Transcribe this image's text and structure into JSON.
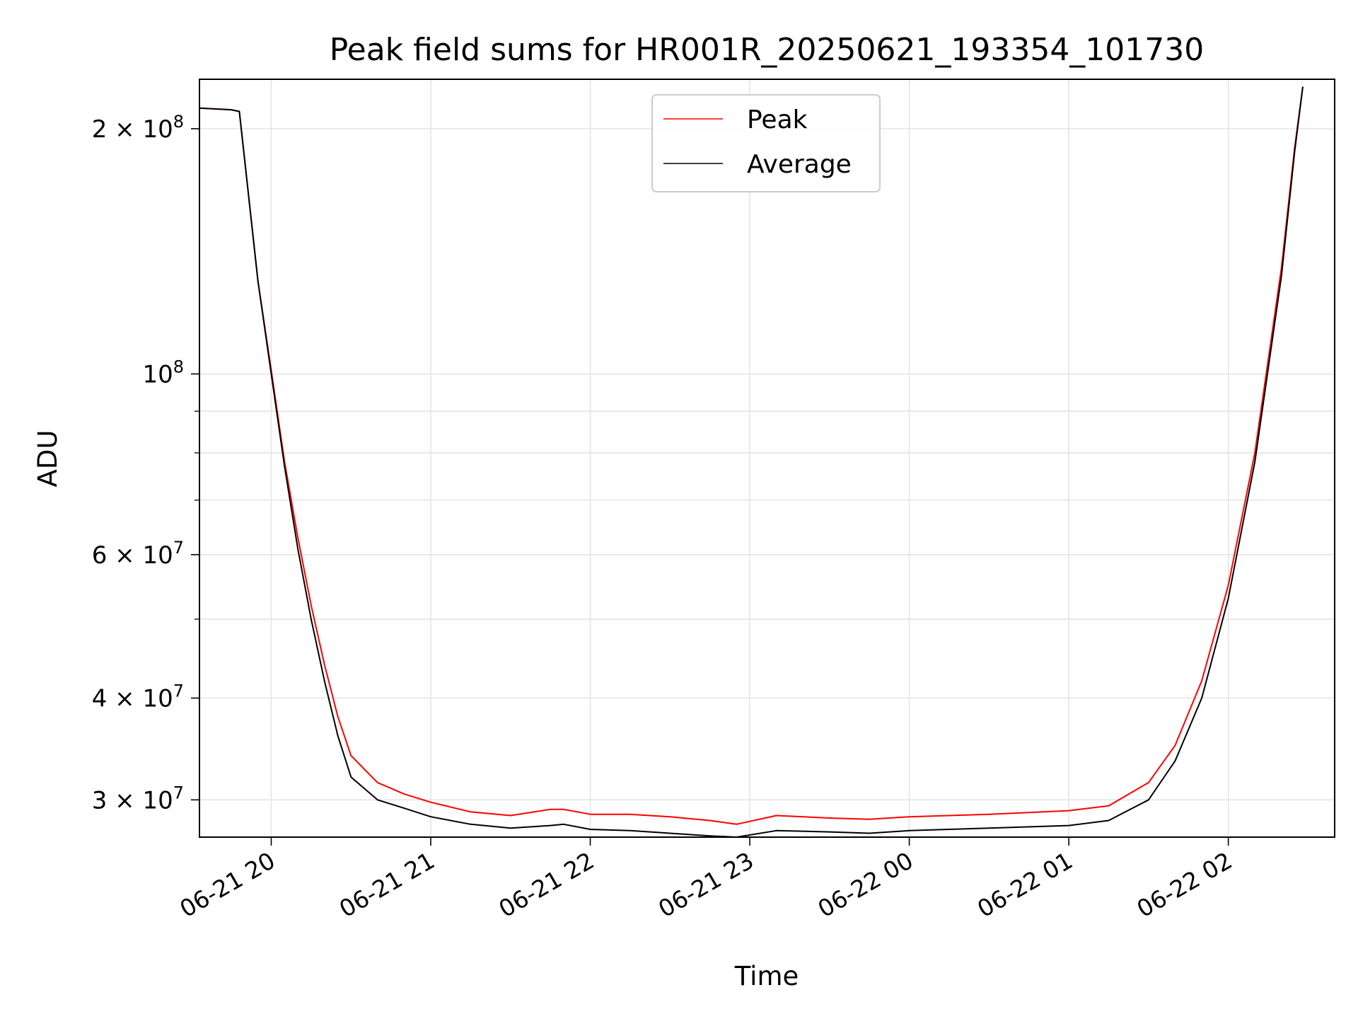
{
  "chart_data": {
    "type": "line",
    "title": "Peak field sums for HR001R_20250621_193354_101730",
    "xlabel": "Time",
    "ylabel": "ADU",
    "yscale": "log",
    "grid": true,
    "legend_position": "upper center",
    "xlim": [
      "2025-06-21 19:33",
      "2025-06-22 02:40"
    ],
    "ylim": [
      27000000,
      230000000
    ],
    "x_ticks": [
      {
        "value": "2025-06-21 20:00",
        "label": "06-21 20"
      },
      {
        "value": "2025-06-21 21:00",
        "label": "06-21 21"
      },
      {
        "value": "2025-06-21 22:00",
        "label": "06-21 22"
      },
      {
        "value": "2025-06-21 23:00",
        "label": "06-21 23"
      },
      {
        "value": "2025-06-22 00:00",
        "label": "06-22 00"
      },
      {
        "value": "2025-06-22 01:00",
        "label": "06-22 01"
      },
      {
        "value": "2025-06-22 02:00",
        "label": "06-22 02"
      }
    ],
    "y_ticks": [
      {
        "value": 200000000,
        "mantissa": "2",
        "exponent": "8"
      },
      {
        "value": 100000000,
        "mantissa": "",
        "exponent": "8"
      },
      {
        "value": 60000000,
        "mantissa": "6",
        "exponent": "7"
      },
      {
        "value": 40000000,
        "mantissa": "4",
        "exponent": "7"
      },
      {
        "value": 30000000,
        "mantissa": "3",
        "exponent": "7"
      }
    ],
    "y_minor_ticks": [
      50000000,
      70000000,
      80000000,
      90000000
    ],
    "series": [
      {
        "name": "Peak",
        "color": "#ff0000",
        "x": [
          "2025-06-21 19:33",
          "2025-06-21 19:45",
          "2025-06-21 19:48",
          "2025-06-21 19:55",
          "2025-06-21 20:00",
          "2025-06-21 20:05",
          "2025-06-21 20:10",
          "2025-06-21 20:15",
          "2025-06-21 20:20",
          "2025-06-21 20:25",
          "2025-06-21 20:30",
          "2025-06-21 20:40",
          "2025-06-21 20:50",
          "2025-06-21 21:00",
          "2025-06-21 21:15",
          "2025-06-21 21:30",
          "2025-06-21 21:45",
          "2025-06-21 21:50",
          "2025-06-21 22:00",
          "2025-06-21 22:15",
          "2025-06-21 22:30",
          "2025-06-21 22:45",
          "2025-06-21 22:55",
          "2025-06-21 23:10",
          "2025-06-21 23:30",
          "2025-06-21 23:45",
          "2025-06-22 00:00",
          "2025-06-22 00:30",
          "2025-06-22 01:00",
          "2025-06-22 01:15",
          "2025-06-22 01:30",
          "2025-06-22 01:40",
          "2025-06-22 01:50",
          "2025-06-22 02:00",
          "2025-06-22 02:10",
          "2025-06-22 02:20",
          "2025-06-22 02:25",
          "2025-06-22 02:28"
        ],
        "y": [
          212000000,
          211000000,
          210000000,
          130000000,
          101000000,
          78000000,
          63000000,
          52000000,
          44000000,
          38000000,
          34000000,
          31500000,
          30500000,
          29800000,
          29000000,
          28700000,
          29200000,
          29200000,
          28800000,
          28800000,
          28600000,
          28300000,
          28000000,
          28700000,
          28500000,
          28400000,
          28600000,
          28800000,
          29100000,
          29500000,
          31500000,
          35000000,
          42000000,
          55000000,
          80000000,
          135000000,
          190000000,
          225000000
        ]
      },
      {
        "name": "Average",
        "color": "#000000",
        "x": [
          "2025-06-21 19:33",
          "2025-06-21 19:45",
          "2025-06-21 19:48",
          "2025-06-21 19:55",
          "2025-06-21 20:00",
          "2025-06-21 20:05",
          "2025-06-21 20:10",
          "2025-06-21 20:15",
          "2025-06-21 20:20",
          "2025-06-21 20:25",
          "2025-06-21 20:30",
          "2025-06-21 20:40",
          "2025-06-21 20:50",
          "2025-06-21 21:00",
          "2025-06-21 21:15",
          "2025-06-21 21:30",
          "2025-06-21 21:45",
          "2025-06-21 21:50",
          "2025-06-21 22:00",
          "2025-06-21 22:15",
          "2025-06-21 22:30",
          "2025-06-21 22:45",
          "2025-06-21 22:55",
          "2025-06-21 23:10",
          "2025-06-21 23:30",
          "2025-06-21 23:45",
          "2025-06-22 00:00",
          "2025-06-22 00:30",
          "2025-06-22 01:00",
          "2025-06-22 01:15",
          "2025-06-22 01:30",
          "2025-06-22 01:40",
          "2025-06-22 01:50",
          "2025-06-22 02:00",
          "2025-06-22 02:10",
          "2025-06-22 02:20",
          "2025-06-22 02:25",
          "2025-06-22 02:28"
        ],
        "y": [
          212000000,
          211000000,
          210000000,
          130000000,
          100000000,
          77000000,
          61000000,
          50000000,
          42000000,
          36000000,
          32000000,
          30000000,
          29300000,
          28600000,
          28000000,
          27700000,
          27900000,
          28000000,
          27600000,
          27500000,
          27300000,
          27100000,
          27000000,
          27500000,
          27400000,
          27300000,
          27500000,
          27700000,
          27900000,
          28300000,
          30000000,
          33500000,
          40000000,
          53000000,
          78000000,
          132000000,
          188000000,
          225000000
        ]
      }
    ]
  }
}
